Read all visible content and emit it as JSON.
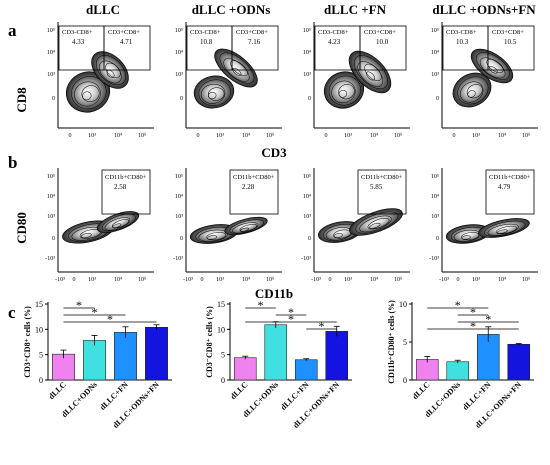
{
  "figure": {
    "panel_labels": [
      "a",
      "b",
      "c"
    ],
    "group_titles": [
      "dLLC",
      "dLLC +ODNs",
      "dLLC +FN",
      "dLLC +ODNs+FN"
    ],
    "row_a": {
      "y_axis_label": "CD8",
      "x_axis_label": "CD3",
      "y_ticks": [
        "10⁵",
        "10⁴",
        "10³",
        "0"
      ],
      "x_ticks": [
        "0",
        "10³",
        "10⁴",
        "10⁵"
      ],
      "gate_left_label": "CD3-CD8+",
      "gate_right_label": "CD3+CD8+",
      "left_values": [
        "4.33",
        "10.8",
        "4.23",
        "10.3"
      ],
      "right_values": [
        "4.71",
        "7.16",
        "10.0",
        "10.5"
      ]
    },
    "row_b": {
      "y_axis_label": "CD80",
      "x_axis_label": "CD11b",
      "y_ticks": [
        "10⁵",
        "10⁴",
        "10³",
        "0",
        "-10³"
      ],
      "x_ticks": [
        "-10³",
        "0",
        "10³",
        "10⁴",
        "10⁵"
      ],
      "gate_label": "CD11b+CD80+",
      "values": [
        "2.58",
        "2.28",
        "5.85",
        "4.79"
      ]
    }
  },
  "chart_data": [
    {
      "type": "bar",
      "title": "",
      "ylabel": "CD3⁺CD8⁺ cells (%)",
      "xlabel": "",
      "categories": [
        "dLLC",
        "dLLC+ODNs",
        "dLLC+FN",
        "dLLC+ODNs+FN"
      ],
      "values": [
        5.1,
        7.8,
        9.4,
        10.4
      ],
      "errors": [
        0.8,
        1.0,
        1.1,
        0.5
      ],
      "ylim": [
        0,
        15
      ],
      "yticks": [
        0,
        5,
        10,
        15
      ],
      "colors": [
        "#ee82ee",
        "#40e0e0",
        "#1e90ff",
        "#1414e0"
      ],
      "significance": [
        {
          "from": 0,
          "to": 1,
          "label": "*"
        },
        {
          "from": 0,
          "to": 2,
          "label": "*"
        },
        {
          "from": 0,
          "to": 3,
          "label": "*"
        }
      ]
    },
    {
      "type": "bar",
      "title": "",
      "ylabel": "CD3⁻CD8⁺ cells (%)",
      "xlabel": "",
      "categories": [
        "dLLC",
        "dLLC+ODNs",
        "dLLC+FN",
        "dLLC+ODNs+FN"
      ],
      "values": [
        4.4,
        10.9,
        4.0,
        9.6
      ],
      "errors": [
        0.3,
        0.6,
        0.2,
        1.0
      ],
      "ylim": [
        0,
        15
      ],
      "yticks": [
        0,
        5,
        10,
        15
      ],
      "colors": [
        "#ee82ee",
        "#40e0e0",
        "#1e90ff",
        "#1414e0"
      ],
      "significance": [
        {
          "from": 0,
          "to": 1,
          "label": "*"
        },
        {
          "from": 1,
          "to": 2,
          "label": "*"
        },
        {
          "from": 0,
          "to": 3,
          "label": "*"
        },
        {
          "from": 2,
          "to": 3,
          "label": "*"
        }
      ]
    },
    {
      "type": "bar",
      "title": "",
      "ylabel": "CD11b⁺CD80⁺ cells (%)",
      "xlabel": "",
      "categories": [
        "dLLC",
        "dLLC+ODNs",
        "dLLC+FN",
        "dLLC+ODNs+FN"
      ],
      "values": [
        2.7,
        2.4,
        6.0,
        4.7
      ],
      "errors": [
        0.4,
        0.2,
        1.0,
        0.1
      ],
      "ylim": [
        0,
        10
      ],
      "yticks": [
        0,
        5,
        10
      ],
      "colors": [
        "#ee82ee",
        "#40e0e0",
        "#1e90ff",
        "#1414e0"
      ],
      "significance": [
        {
          "from": 0,
          "to": 2,
          "label": "*"
        },
        {
          "from": 1,
          "to": 2,
          "label": "*"
        },
        {
          "from": 1,
          "to": 3,
          "label": "*"
        },
        {
          "from": 0,
          "to": 3,
          "label": "*"
        }
      ]
    }
  ]
}
